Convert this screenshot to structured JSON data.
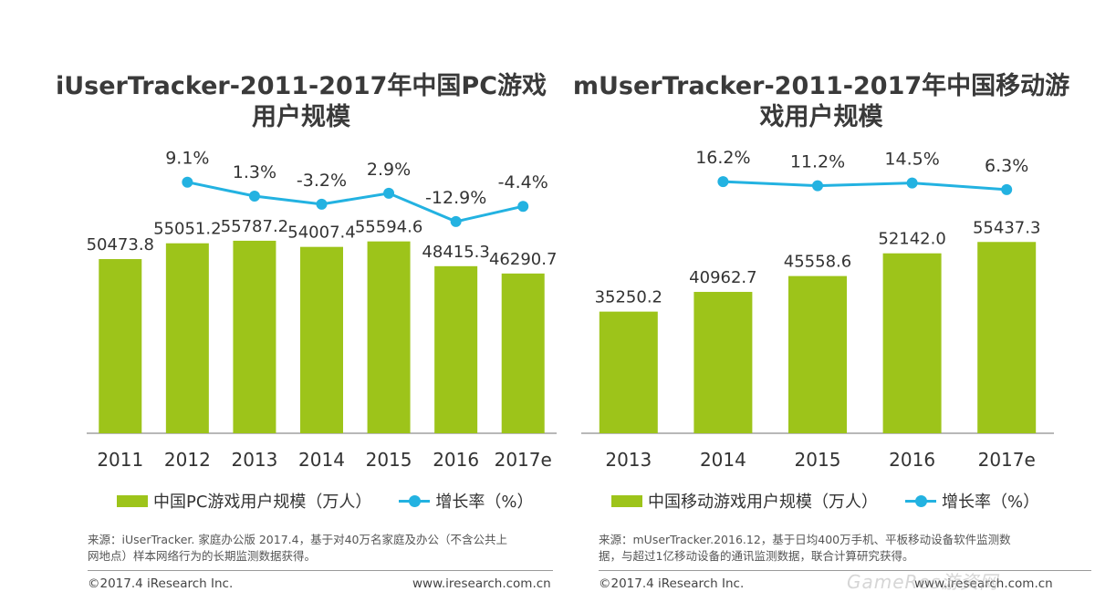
{
  "colors": {
    "bar": "#9dc41a",
    "line": "#23b2e1",
    "axis": "#a0a0a0",
    "text": "#333333"
  },
  "chart_data": [
    {
      "type": "bar",
      "title": "iUserTracker-2011-2017年中国PC游戏用户规模",
      "title_line1": "iUserTracker-2011-2017年中国PC游戏",
      "title_line2": "用户规模",
      "categories": [
        "2011",
        "2012",
        "2013",
        "2014",
        "2015",
        "2016",
        "2017e"
      ],
      "values": [
        50473.8,
        55051.2,
        55787.2,
        54007.4,
        55594.6,
        48415.3,
        46290.7
      ],
      "value_labels": [
        "50473.8",
        "55051.2",
        "55787.2",
        "54007.4",
        "55594.6",
        "48415.3",
        "46290.7"
      ],
      "growth_indices": [
        1,
        2,
        3,
        4,
        5,
        6
      ],
      "growth_values": [
        9.1,
        1.3,
        -3.2,
        2.9,
        -12.9,
        -4.4
      ],
      "growth_labels": [
        "9.1%",
        "1.3%",
        "-3.2%",
        "2.9%",
        "-12.9%",
        "-4.4%"
      ],
      "growth_range": [
        -16,
        12
      ],
      "ylim": [
        0,
        60000
      ],
      "legend_bar": "中国PC游戏用户规模（万人）",
      "legend_line": "增长率（%）",
      "source_line1": "来源：iUserTracker. 家庭办公版 2017.4，基于对40万名家庭及办公（不含公共上",
      "source_line2": "网地点）样本网络行为的长期监测数据获得。",
      "footer_left": "©2017.4 iResearch Inc.",
      "footer_right": "www.iresearch.com.cn"
    },
    {
      "type": "bar",
      "title": "mUserTracker-2011-2017年中国移动游戏用户规模",
      "title_line1": "mUserTracker-2011-2017年中国移动游",
      "title_line2": "戏用户规模",
      "categories": [
        "2013",
        "2014",
        "2015",
        "2016",
        "2017e"
      ],
      "values": [
        35250.2,
        40962.7,
        45558.6,
        52142.0,
        55437.3
      ],
      "value_labels": [
        "35250.2",
        "40962.7",
        "45558.6",
        "52142.0",
        "55437.3"
      ],
      "growth_indices": [
        1,
        2,
        3,
        4
      ],
      "growth_values": [
        16.2,
        11.2,
        14.5,
        6.3
      ],
      "growth_labels": [
        "16.2%",
        "11.2%",
        "14.5%",
        "6.3%"
      ],
      "growth_range": [
        -40,
        22
      ],
      "ylim": [
        0,
        60000
      ],
      "legend_bar": "中国移动游戏用户规模（万人）",
      "legend_line": "增长率（%）",
      "source_line1": "来源：mUserTracker.2016.12，基于日均400万手机、平板移动设备软件监测数",
      "source_line2": "据，与超过1亿移动设备的通讯监测数据，联合计算研究获得。",
      "footer_left": "©2017.4 iResearch Inc.",
      "footer_right": "www.iresearch.com.cn"
    }
  ],
  "watermark": "GameRes游资网"
}
